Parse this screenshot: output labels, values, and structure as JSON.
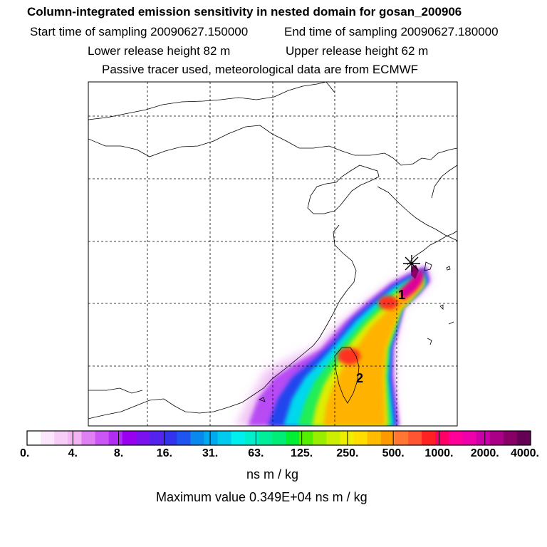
{
  "header": {
    "title": "Column-integrated emission sensitivity in nested domain for gosan_200906",
    "start_label": "Start time of sampling 20090627.150000",
    "end_label": "End time of sampling 20090627.180000",
    "lower_label": "Lower release height   82 m",
    "upper_label": "Upper release height   62 m",
    "tracer_label": "Passive tracer used, meteorological data are from ECMWF"
  },
  "map": {
    "markers": [
      {
        "label": "1"
      },
      {
        "label": "2"
      }
    ],
    "release_marker": "asterisk-star-icon"
  },
  "colorbar": {
    "ticks": [
      "0.",
      "4.",
      "8.",
      "16.",
      "31.",
      "63.",
      "125.",
      "250.",
      "500.",
      "1000.",
      "2000.",
      "4000."
    ],
    "colors": [
      "#ffffff",
      "#fbe6fb",
      "#f7cdf7",
      "#f2b4f2",
      "#e080f5",
      "#cc55f5",
      "#b22df2",
      "#9900f0",
      "#7a11ee",
      "#5522ee",
      "#3333ee",
      "#1f55ee",
      "#0a88ee",
      "#00aaee",
      "#00cbee",
      "#00eeee",
      "#00eecc",
      "#00ee99",
      "#00ee77",
      "#00ee33",
      "#55ee00",
      "#99ee00",
      "#ccee00",
      "#eeee00",
      "#ffdd00",
      "#ffbb00",
      "#ff9900",
      "#ff7733",
      "#ff5533",
      "#ff2222",
      "#ff0066",
      "#ff0099",
      "#ee00aa",
      "#cc00aa",
      "#aa0088",
      "#880066",
      "#660055"
    ],
    "unit": "ns m / kg",
    "max_label": "Maximum value  0.349E+04 ns m / kg"
  }
}
